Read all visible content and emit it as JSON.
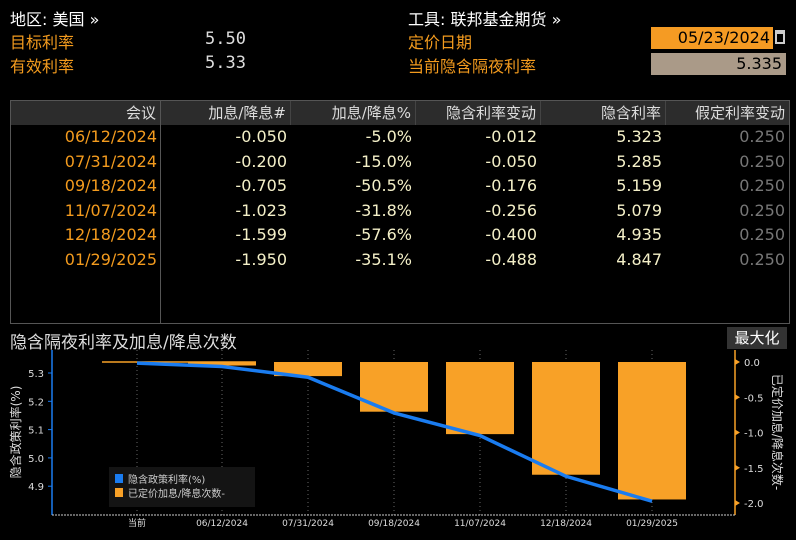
{
  "header": {
    "region_label": "地区: 美国 »",
    "instrument_label": "工具: 联邦基金期货 »",
    "target_rate_label": "目标利率",
    "target_rate": "5.50",
    "effective_rate_label": "有效利率",
    "effective_rate": "5.33",
    "pricing_date_label": "定价日期",
    "pricing_date": "05/23/2024",
    "implied_rate_label": "当前隐含隔夜利率",
    "implied_rate": "5.335"
  },
  "table": {
    "columns": [
      "会议",
      "加息/降息#",
      "加息/降息%",
      "隐含利率变动",
      "隐含利率",
      "假定利率变动"
    ],
    "rows": [
      [
        "06/12/2024",
        "-0.050",
        "-5.0%",
        "-0.012",
        "5.323",
        "0.250"
      ],
      [
        "07/31/2024",
        "-0.200",
        "-15.0%",
        "-0.050",
        "5.285",
        "0.250"
      ],
      [
        "09/18/2024",
        "-0.705",
        "-50.5%",
        "-0.176",
        "5.159",
        "0.250"
      ],
      [
        "11/07/2024",
        "-1.023",
        "-31.8%",
        "-0.256",
        "5.079",
        "0.250"
      ],
      [
        "12/18/2024",
        "-1.599",
        "-57.6%",
        "-0.400",
        "4.935",
        "0.250"
      ],
      [
        "01/29/2025",
        "-1.950",
        "-35.1%",
        "-0.488",
        "4.847",
        "0.250"
      ]
    ]
  },
  "chart": {
    "title": "隐含隔夜利率及加息/降息次数",
    "maximize_label": "最大化"
  },
  "chart_data": {
    "type": "bar+line",
    "categories": [
      "当前",
      "06/12/2024",
      "07/31/2024",
      "09/18/2024",
      "11/07/2024",
      "12/18/2024",
      "01/29/2025"
    ],
    "series": [
      {
        "name": "隐含政策利率(%)",
        "type": "line",
        "axis": "left",
        "color": "#1a7cf0",
        "values": [
          5.335,
          5.323,
          5.285,
          5.159,
          5.079,
          4.935,
          4.847
        ]
      },
      {
        "name": "已定价加息/降息次数-",
        "type": "bar",
        "axis": "right",
        "color": "#f8a127",
        "values": [
          null,
          -0.05,
          -0.2,
          -0.705,
          -1.023,
          -1.599,
          -1.95
        ]
      }
    ],
    "ylabel_left": "隐含政策利率(%)",
    "ylabel_right": "已定价加息/降息次数-",
    "yticks_left": [
      "5.3",
      "5.2",
      "5.1",
      "5.0",
      "4.9"
    ],
    "yticks_right": [
      "0.0",
      "-0.5",
      "-1.0",
      "-1.5",
      "-2.0"
    ],
    "ylim_left": [
      4.81,
      5.37
    ],
    "ylim_right": [
      -2.1,
      0.05
    ],
    "grid": "vertical-dotted",
    "legend": "bottom-left"
  }
}
